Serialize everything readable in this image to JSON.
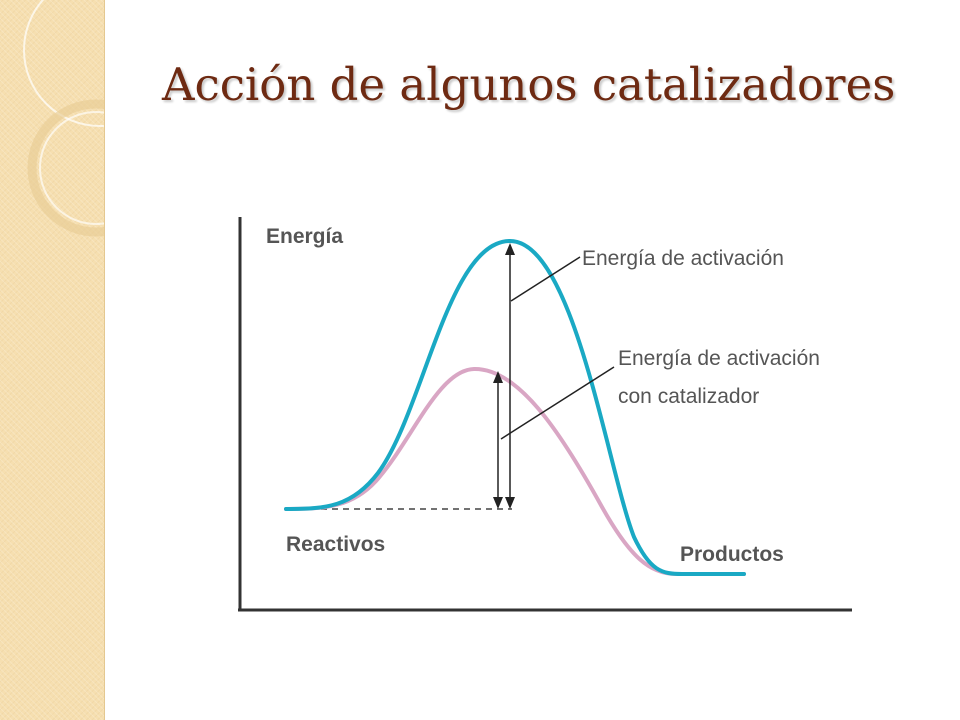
{
  "slide": {
    "title": "Acción de algunos catalizadores"
  },
  "diagram": {
    "y_axis_label": "Energía",
    "reactants_label": "Reactivos",
    "products_label": "Productos",
    "activation_label": "Energía de activación",
    "catalyzed_activation_label_line1": "Energía de activación",
    "catalyzed_activation_label_line2": "con catalizador"
  },
  "colors": {
    "title": "#6e2a12",
    "sidebar": "#f6dfb0",
    "uncatalyzed_curve": "#1aa9c4",
    "catalyzed_curve": "#d9a6c4",
    "axis": "#333333",
    "label_text": "#555555"
  }
}
